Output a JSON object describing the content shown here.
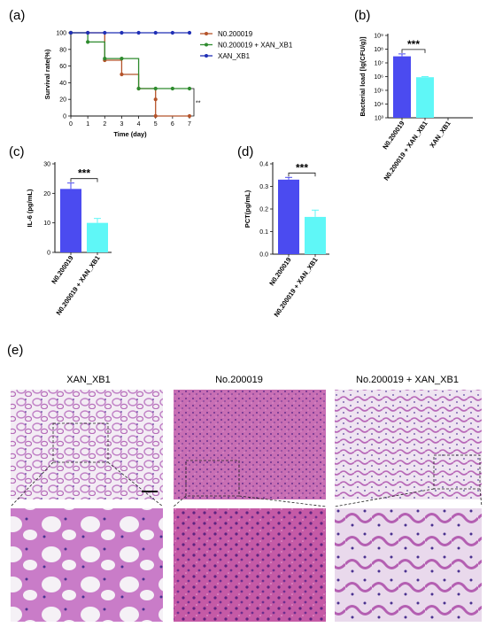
{
  "panel_labels": [
    "(a)",
    "(b)",
    "(c)",
    "(d)",
    "(e)"
  ],
  "colors": {
    "n0": "#b5532a",
    "combo": "#2e8b2e",
    "xan": "#1f2fb5",
    "bar_blue": "#4b4bf0",
    "bar_cyan": "#5ff7f7",
    "tissue": "#c97cc8",
    "tissue_bg": "#ece4f0"
  },
  "chart_data": [
    {
      "id": "a",
      "type": "line",
      "xlabel": "Time (day)",
      "ylabel": "Survival rate(%)",
      "xlim": [
        0,
        7
      ],
      "ylim": [
        0,
        100
      ],
      "xticks": [
        "0",
        "1",
        "2",
        "3",
        "4",
        "5",
        "6",
        "7"
      ],
      "yticks": [
        "0",
        "20",
        "40",
        "60",
        "80",
        "100"
      ],
      "legend_position": "right",
      "significance": "**",
      "series": [
        {
          "name": "N0.200019",
          "x": [
            0,
            1,
            2,
            3,
            4,
            5,
            5,
            7
          ],
          "y": [
            100,
            100,
            67,
            50,
            33,
            20,
            0,
            0
          ]
        },
        {
          "name": "N0.200019 + XAN_XB1",
          "x": [
            0,
            1,
            2,
            3,
            4,
            5,
            6,
            7
          ],
          "y": [
            100,
            89,
            69,
            69,
            33,
            33,
            33,
            33
          ]
        },
        {
          "name": "XAN_XB1",
          "x": [
            0,
            1,
            2,
            3,
            4,
            5,
            6,
            7
          ],
          "y": [
            100,
            100,
            100,
            100,
            100,
            100,
            100,
            100
          ]
        }
      ]
    },
    {
      "id": "b",
      "type": "bar",
      "ylabel": "Bacterial load [lg(CFU/g)]",
      "scale": "log",
      "ylim": [
        1000,
        1000000000
      ],
      "yticks": [
        "10³",
        "10⁴",
        "10⁵",
        "10⁶",
        "10⁷",
        "10⁸",
        "10⁹"
      ],
      "categories": [
        "N0.200019",
        "N0.200019 + XAN_XB1",
        "XAN_XB1"
      ],
      "values": [
        30000000,
        900000,
        0
      ],
      "errors": [
        15000000,
        100000,
        0
      ],
      "significance": "***"
    },
    {
      "id": "c",
      "type": "bar",
      "ylabel": "IL-6 (pg/mL)",
      "ylim": [
        0,
        30
      ],
      "yticks": [
        "0",
        "10",
        "20",
        "30"
      ],
      "categories": [
        "N0.200019",
        "N0.200019 + XAN_XB1"
      ],
      "values": [
        21.5,
        10
      ],
      "errors": [
        2,
        1.5
      ],
      "significance": "***"
    },
    {
      "id": "d",
      "type": "bar",
      "ylabel": "PCT(pg/mL)",
      "ylim": [
        0,
        0.4
      ],
      "yticks": [
        "0.0",
        "0.1",
        "0.2",
        "0.3",
        "0.4"
      ],
      "categories": [
        "N0.200019",
        "N0.200019 + XAN_XB1"
      ],
      "values": [
        0.33,
        0.165
      ],
      "errors": [
        0.01,
        0.03
      ],
      "significance": "***"
    }
  ],
  "histology": {
    "titles": [
      "XAN_XB1",
      "No.200019",
      "No.200019 + XAN_XB1"
    ]
  }
}
